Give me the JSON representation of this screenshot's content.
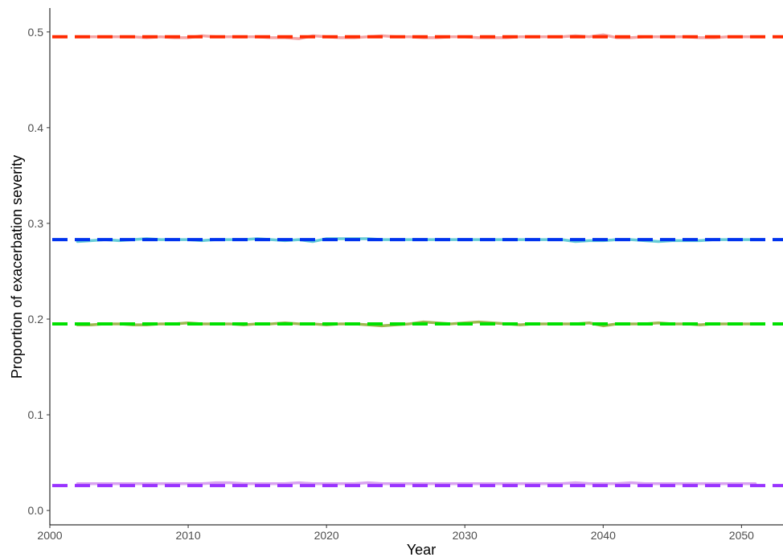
{
  "chart_data": {
    "type": "line",
    "title": "",
    "xlabel": "Year",
    "ylabel": "Proportion of exacerbation severity",
    "xlim": [
      2000,
      2053
    ],
    "ylim": [
      -0.015,
      0.525
    ],
    "x_ticks": [
      "2000",
      "2010",
      "2020",
      "2030",
      "2040",
      "2050"
    ],
    "y_ticks": [
      "0.0",
      "0.1",
      "0.2",
      "0.3",
      "0.4",
      "0.5"
    ],
    "grid": false,
    "legend": "none",
    "x": [
      2002,
      2003,
      2004,
      2005,
      2006,
      2007,
      2008,
      2009,
      2010,
      2011,
      2012,
      2013,
      2014,
      2015,
      2016,
      2017,
      2018,
      2019,
      2020,
      2021,
      2022,
      2023,
      2024,
      2025,
      2026,
      2027,
      2028,
      2029,
      2030,
      2031,
      2032,
      2033,
      2034,
      2035,
      2036,
      2037,
      2038,
      2039,
      2040,
      2041,
      2042,
      2043,
      2044,
      2045,
      2046,
      2047,
      2048,
      2049,
      2050,
      2051
    ],
    "series": [
      {
        "color": "#f4a3a3",
        "values": [
          0.495,
          0.495,
          0.495,
          0.495,
          0.495,
          0.494,
          0.495,
          0.494,
          0.494,
          0.496,
          0.495,
          0.495,
          0.495,
          0.495,
          0.494,
          0.494,
          0.493,
          0.496,
          0.495,
          0.494,
          0.494,
          0.495,
          0.496,
          0.495,
          0.495,
          0.494,
          0.494,
          0.495,
          0.495,
          0.494,
          0.494,
          0.494,
          0.495,
          0.495,
          0.495,
          0.495,
          0.496,
          0.495,
          0.497,
          0.494,
          0.494,
          0.495,
          0.495,
          0.495,
          0.495,
          0.494,
          0.494,
          0.495,
          0.495,
          0.495
        ]
      },
      {
        "color": "#66ccd6",
        "values": [
          0.281,
          0.282,
          0.283,
          0.282,
          0.283,
          0.284,
          0.283,
          0.283,
          0.283,
          0.282,
          0.283,
          0.283,
          0.283,
          0.284,
          0.283,
          0.282,
          0.283,
          0.281,
          0.284,
          0.284,
          0.284,
          0.284,
          0.283,
          0.283,
          0.283,
          0.283,
          0.283,
          0.283,
          0.283,
          0.283,
          0.283,
          0.283,
          0.283,
          0.283,
          0.283,
          0.283,
          0.281,
          0.282,
          0.282,
          0.283,
          0.283,
          0.282,
          0.281,
          0.282,
          0.282,
          0.282,
          0.283,
          0.283,
          0.283,
          0.283
        ]
      },
      {
        "color": "#9cb850",
        "values": [
          0.194,
          0.194,
          0.195,
          0.195,
          0.194,
          0.194,
          0.195,
          0.195,
          0.196,
          0.195,
          0.195,
          0.195,
          0.194,
          0.195,
          0.195,
          0.196,
          0.195,
          0.195,
          0.194,
          0.195,
          0.195,
          0.194,
          0.193,
          0.194,
          0.195,
          0.197,
          0.196,
          0.195,
          0.196,
          0.197,
          0.196,
          0.195,
          0.194,
          0.195,
          0.195,
          0.195,
          0.195,
          0.196,
          0.193,
          0.195,
          0.195,
          0.195,
          0.196,
          0.195,
          0.195,
          0.194,
          0.195,
          0.195,
          0.195,
          0.195
        ]
      },
      {
        "color": "#d9a3f0",
        "values": [
          0.028,
          0.028,
          0.028,
          0.028,
          0.028,
          0.028,
          0.028,
          0.028,
          0.028,
          0.028,
          0.029,
          0.029,
          0.028,
          0.028,
          0.028,
          0.028,
          0.029,
          0.028,
          0.028,
          0.028,
          0.028,
          0.029,
          0.028,
          0.028,
          0.028,
          0.028,
          0.028,
          0.028,
          0.028,
          0.028,
          0.028,
          0.028,
          0.028,
          0.028,
          0.028,
          0.028,
          0.029,
          0.028,
          0.028,
          0.028,
          0.029,
          0.028,
          0.028,
          0.028,
          0.028,
          0.028,
          0.028,
          0.028,
          0.028,
          0.028
        ]
      }
    ],
    "reference_lines": [
      {
        "color": "#ff2a00",
        "value": 0.495
      },
      {
        "color": "#0033ee",
        "value": 0.283
      },
      {
        "color": "#00e000",
        "value": 0.195
      },
      {
        "color": "#9933ff",
        "value": 0.026
      }
    ]
  }
}
